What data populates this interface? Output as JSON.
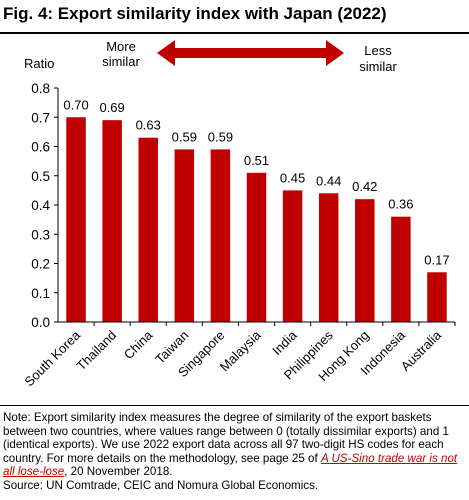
{
  "title": "Fig. 4: Export similarity index with Japan (2022)",
  "arrow": {
    "left_label_line1": "More",
    "left_label_line2": "similar",
    "right_label_line1": "Less",
    "right_label_line2": "similar",
    "color": "#c00000"
  },
  "chart_data": {
    "type": "bar",
    "ylabel": "Ratio",
    "ylim": [
      0,
      0.8
    ],
    "yticks": [
      "0.0",
      "0.1",
      "0.2",
      "0.3",
      "0.4",
      "0.5",
      "0.6",
      "0.7",
      "0.8"
    ],
    "categories": [
      "South Korea",
      "Thailand",
      "China",
      "Taiwan",
      "Singapore",
      "Malaysia",
      "India",
      "Philippines",
      "Hong Kong",
      "Indonesia",
      "Australia"
    ],
    "values": [
      0.7,
      0.69,
      0.63,
      0.59,
      0.59,
      0.51,
      0.45,
      0.44,
      0.42,
      0.36,
      0.17
    ],
    "labels": [
      "0.70",
      "0.69",
      "0.63",
      "0.59",
      "0.59",
      "0.51",
      "0.45",
      "0.44",
      "0.42",
      "0.36",
      "0.17"
    ],
    "bar_color": "#c00000"
  },
  "footnote": {
    "text_before_link": "Note: Export similarity index measures the degree of similarity of the export baskets between two countries, where values range between 0 (totally dissimilar exports) and 1 (identical exports). We use 2022 export data across all 97 two-digit HS codes for each country. For more details on the methodology, see page 25 of ",
    "link_text": "A US-Sino trade war is not all lose-lose",
    "text_after_link": ", 20 November 2018.",
    "source": "Source: UN Comtrade, CEIC and Nomura Global Economics."
  }
}
